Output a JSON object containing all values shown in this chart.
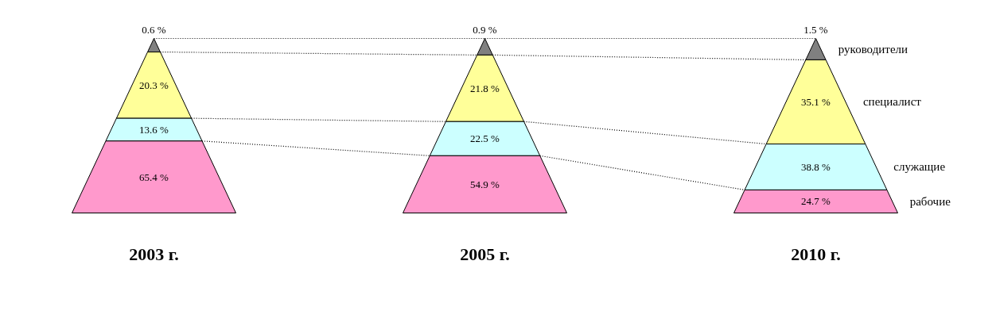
{
  "chart_data": {
    "type": "other",
    "categories": [
      "2003 г.",
      "2005 г.",
      "2010 г."
    ],
    "series": [
      {
        "name": "рабочие",
        "color": "#ff99cc",
        "values": [
          65.4,
          54.9,
          24.7
        ],
        "value_labels": [
          "65.4 %",
          "54.9 %",
          "24.7 %"
        ]
      },
      {
        "name": "служащие",
        "color": "#ccffff",
        "values": [
          13.6,
          22.5,
          38.8
        ],
        "value_labels": [
          "13.6 %",
          "22.5 %",
          "38.8 %"
        ]
      },
      {
        "name": "специалист",
        "color": "#ffff99",
        "values": [
          20.3,
          21.8,
          35.1
        ],
        "value_labels": [
          "20.3 %",
          "21.8 %",
          "35.1 %"
        ]
      },
      {
        "name": "руководители",
        "color": "#808080",
        "values": [
          0.6,
          0.9,
          1.5
        ],
        "value_labels": [
          "0.6 %",
          "0.9 %",
          "1.5 %"
        ]
      }
    ]
  }
}
